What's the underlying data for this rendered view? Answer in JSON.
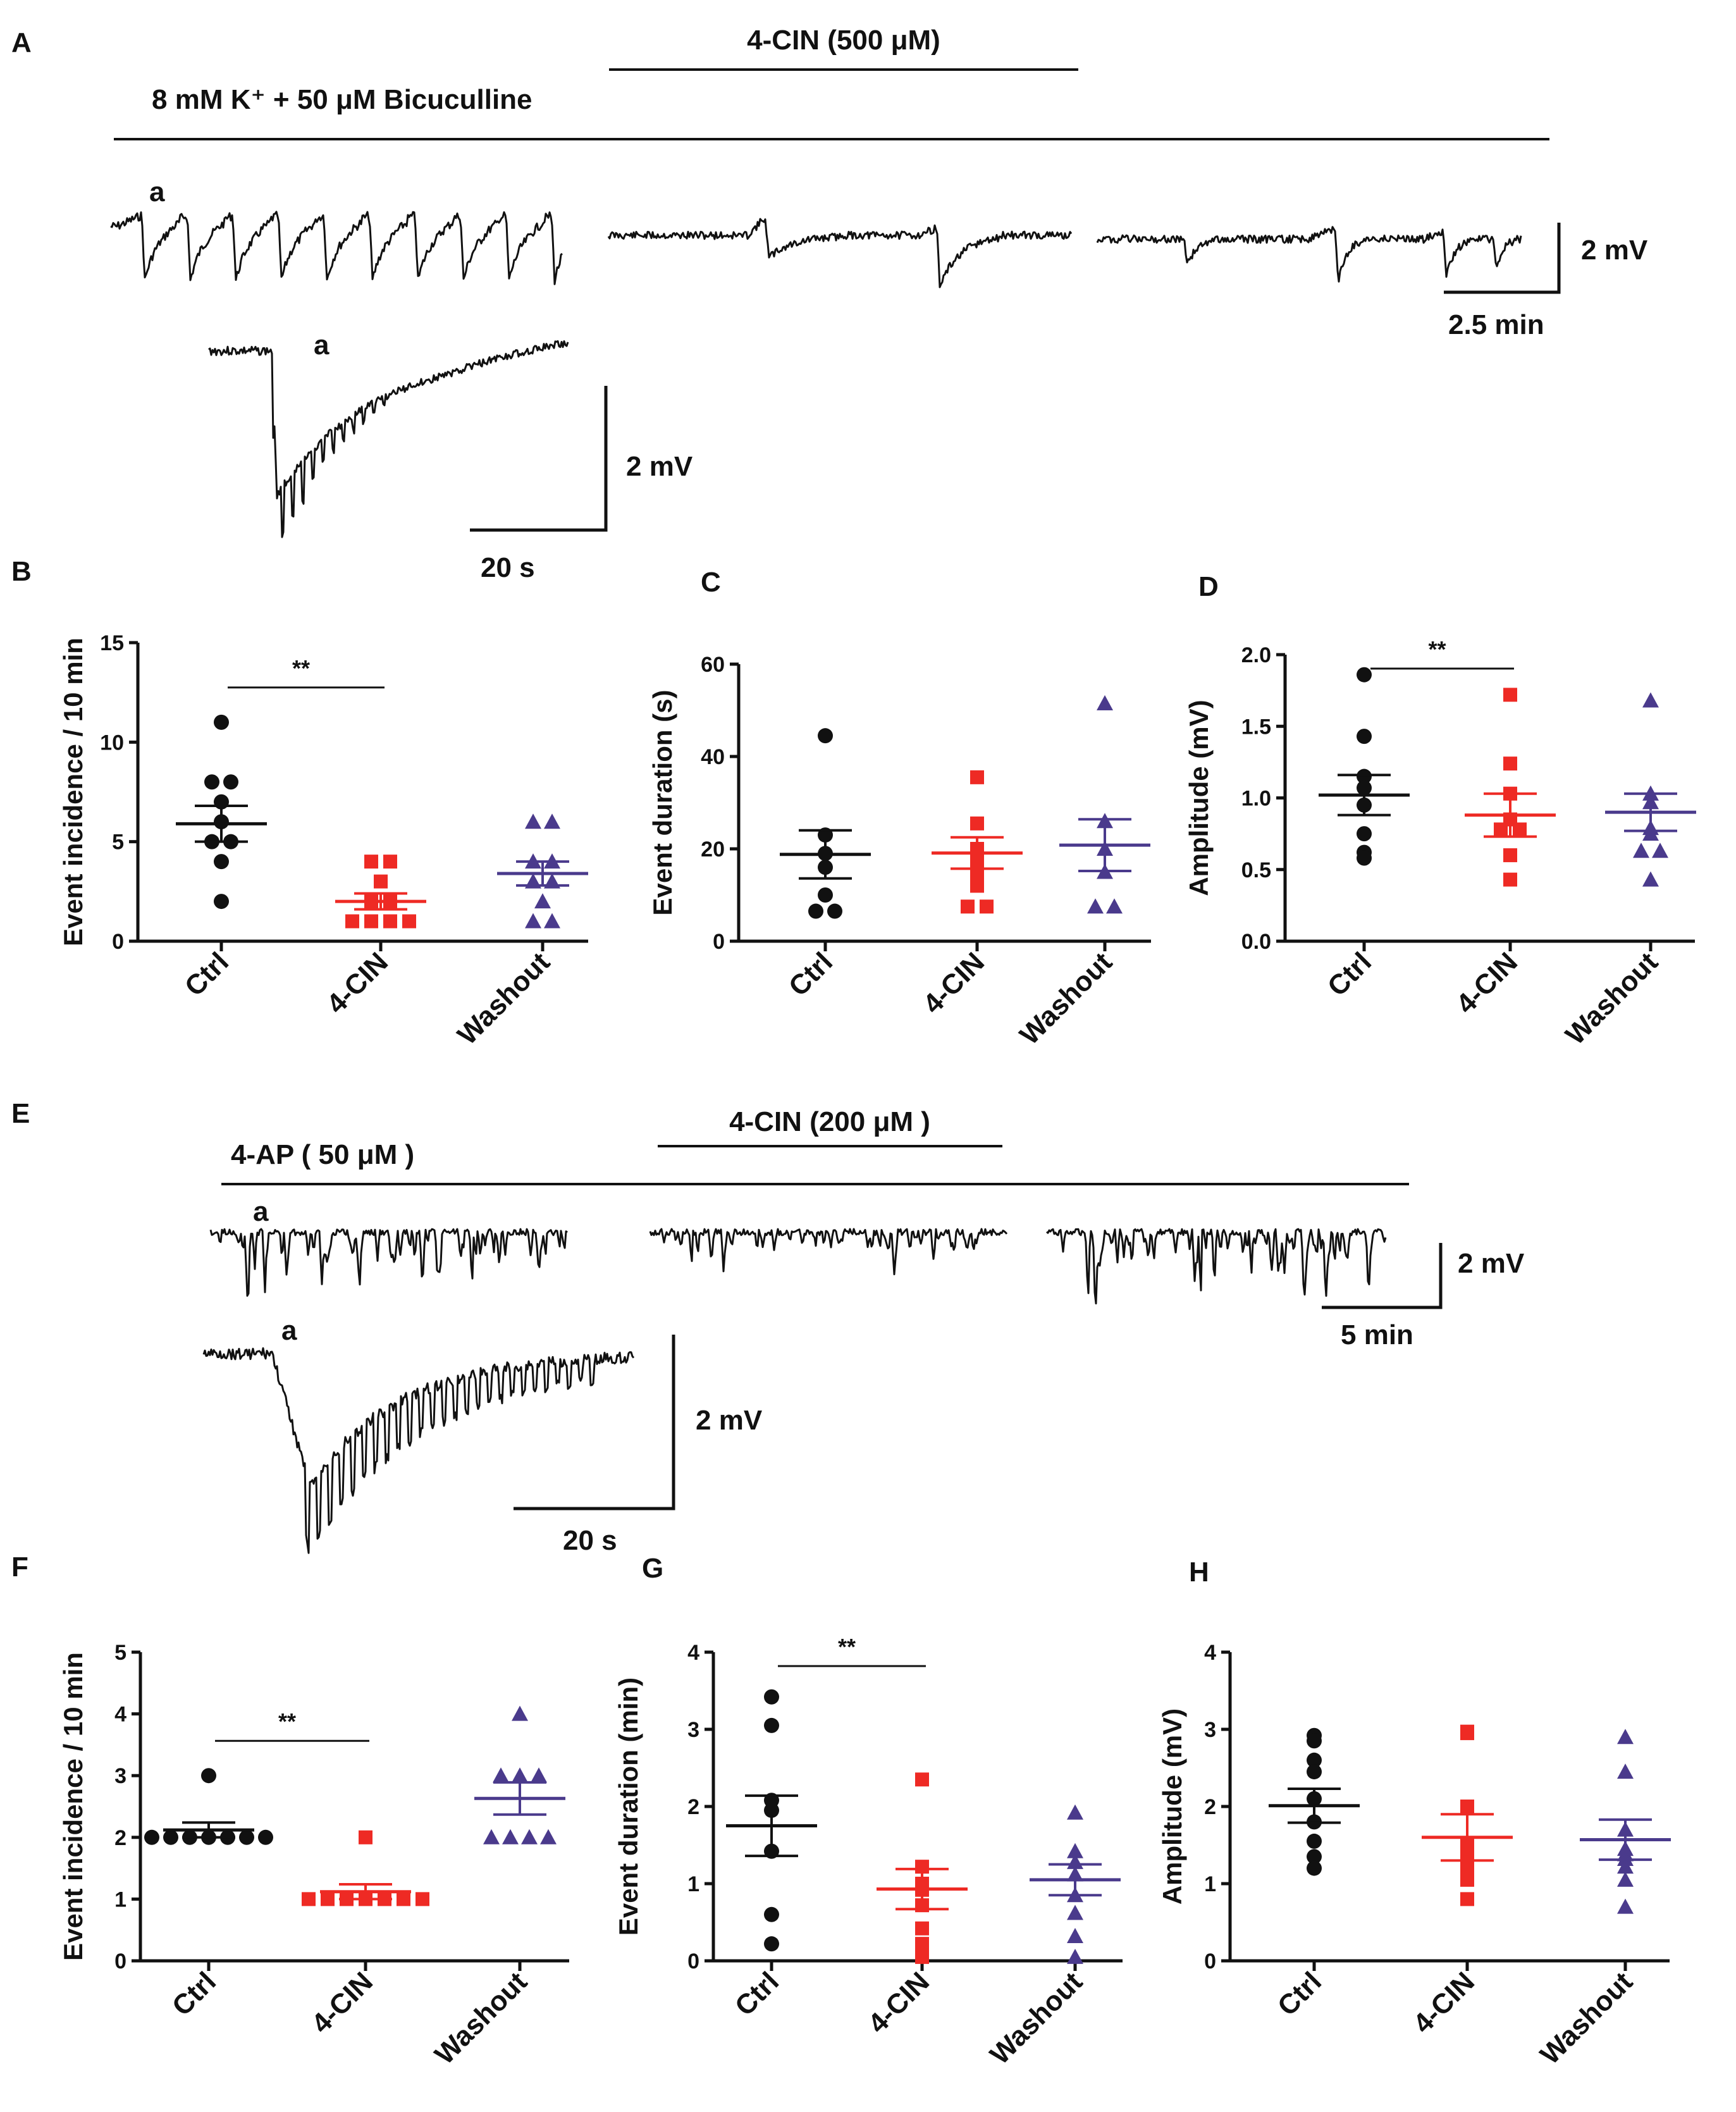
{
  "colors": {
    "ctrl": "#111111",
    "cin": "#ee2a24",
    "washout": "#4a3a8c"
  },
  "traces": {
    "A": {
      "label": "A",
      "baseline_label": "8 mM K⁺ + 50 μM  Bicuculline",
      "drug_label": "4-CIN (500 μM)",
      "event_marker": "a",
      "scale_v": "2 mV",
      "scale_t": "2.5 min",
      "inset_marker": "a",
      "inset_scale_v": "2 mV",
      "inset_scale_t": "20 s"
    },
    "E": {
      "label": "E",
      "baseline_label": "4-AP ( 50 μM )",
      "drug_label": "4-CIN (200 μM )",
      "event_marker": "a",
      "scale_v": "2 mV",
      "scale_t": "5 min",
      "inset_marker": "a",
      "inset_scale_v": "2 mV",
      "inset_scale_t": "20 s"
    }
  },
  "chart_data": [
    {
      "panel": "B",
      "type": "scatter",
      "ylabel": "Event incidence / 10 min",
      "ylim": [
        0,
        15
      ],
      "yticks": [
        "0",
        "5",
        "10",
        "15"
      ],
      "categories": [
        "Ctrl",
        "4-CIN",
        "Washout"
      ],
      "series": [
        {
          "name": "Ctrl",
          "marker": "circle",
          "values": [
            11,
            8,
            8,
            7,
            6,
            5,
            5,
            4,
            2
          ],
          "mean": 5.9,
          "sem": 0.9
        },
        {
          "name": "4-CIN",
          "marker": "square",
          "values": [
            4,
            4,
            3,
            2,
            2,
            1,
            1,
            1,
            1
          ],
          "mean": 2.0,
          "sem": 0.4
        },
        {
          "name": "Washout",
          "marker": "triangle",
          "values": [
            6,
            6,
            4,
            4,
            3,
            3,
            2,
            1,
            1
          ],
          "mean": 3.4,
          "sem": 0.6
        }
      ],
      "significance": [
        {
          "from": 0,
          "to": 1,
          "label": "**"
        }
      ]
    },
    {
      "panel": "C",
      "type": "scatter",
      "ylabel": "Event duration (s)",
      "ylim": [
        0,
        60
      ],
      "yticks": [
        "0",
        "20",
        "40",
        "60"
      ],
      "categories": [
        "Ctrl",
        "4-CIN",
        "Washout"
      ],
      "series": [
        {
          "name": "Ctrl",
          "marker": "circle",
          "values": [
            44.5,
            23,
            19,
            16,
            10,
            6.5,
            6.5
          ],
          "mean": 18.8,
          "sem": 5.2
        },
        {
          "name": "4-CIN",
          "marker": "square",
          "values": [
            35.5,
            25.5,
            20,
            17,
            14,
            12,
            7.5,
            7.5
          ],
          "mean": 19.1,
          "sem": 3.4
        },
        {
          "name": "Washout",
          "marker": "triangle",
          "values": [
            51.5,
            26,
            20,
            15,
            7.5,
            7.5
          ],
          "mean": 20.8,
          "sem": 5.6
        }
      ],
      "significance": []
    },
    {
      "panel": "D",
      "type": "scatter",
      "ylabel": "Amplitude (mV)",
      "ylim": [
        0,
        2
      ],
      "yticks": [
        "0.0",
        "0.5",
        "1.0",
        "1.5",
        "2.0"
      ],
      "categories": [
        "Ctrl",
        "4-CIN",
        "Washout"
      ],
      "series": [
        {
          "name": "Ctrl",
          "marker": "circle",
          "values": [
            1.86,
            1.43,
            1.15,
            1.07,
            0.95,
            0.75,
            0.62,
            0.58
          ],
          "mean": 1.02,
          "sem": 0.14
        },
        {
          "name": "4-CIN",
          "marker": "square",
          "values": [
            1.72,
            1.24,
            1.03,
            0.85,
            0.78,
            0.78,
            0.6,
            0.43
          ],
          "mean": 0.88,
          "sem": 0.15
        },
        {
          "name": "Washout",
          "marker": "triangle",
          "values": [
            1.68,
            1.03,
            0.97,
            0.79,
            0.75,
            0.63,
            0.63,
            0.43
          ],
          "mean": 0.9,
          "sem": 0.13
        }
      ],
      "significance": [
        {
          "from": 0,
          "to": 1,
          "label": "**"
        }
      ]
    },
    {
      "panel": "F",
      "type": "scatter",
      "ylabel": "Event incidence / 10 min",
      "ylim": [
        0,
        5
      ],
      "yticks": [
        "0",
        "1",
        "2",
        "3",
        "4",
        "5"
      ],
      "categories": [
        "Ctrl",
        "4-CIN",
        "Washout"
      ],
      "series": [
        {
          "name": "Ctrl",
          "marker": "circle",
          "values": [
            3,
            2,
            2,
            2,
            2,
            2,
            2,
            2
          ],
          "mean": 2.12,
          "sem": 0.12
        },
        {
          "name": "4-CIN",
          "marker": "square",
          "values": [
            2,
            1,
            1,
            1,
            1,
            1,
            1,
            1
          ],
          "mean": 1.12,
          "sem": 0.12
        },
        {
          "name": "Washout",
          "marker": "triangle",
          "values": [
            4,
            3,
            3,
            3,
            2,
            2,
            2,
            2
          ],
          "mean": 2.63,
          "sem": 0.26
        }
      ],
      "significance": [
        {
          "from": 0,
          "to": 1,
          "label": "**"
        }
      ]
    },
    {
      "panel": "G",
      "type": "scatter",
      "ylabel": "Event duration (min)",
      "ylim": [
        0,
        4
      ],
      "yticks": [
        "0",
        "1",
        "2",
        "3",
        "4"
      ],
      "categories": [
        "Ctrl",
        "4-CIN",
        "Washout"
      ],
      "series": [
        {
          "name": "Ctrl",
          "marker": "circle",
          "values": [
            3.42,
            3.05,
            2.08,
            1.95,
            1.42,
            0.6,
            0.22
          ],
          "mean": 1.75,
          "sem": 0.39
        },
        {
          "name": "4-CIN",
          "marker": "square",
          "values": [
            2.35,
            1.22,
            1.0,
            0.92,
            0.72,
            0.42,
            0.22,
            0.05
          ],
          "mean": 0.93,
          "sem": 0.26
        },
        {
          "name": "Washout",
          "marker": "triangle",
          "values": [
            1.92,
            1.42,
            1.28,
            1.12,
            0.85,
            0.62,
            0.32,
            0.05
          ],
          "mean": 1.05,
          "sem": 0.2
        }
      ],
      "significance": [
        {
          "from": 0,
          "to": 1,
          "label": "**"
        }
      ]
    },
    {
      "panel": "H",
      "type": "scatter",
      "ylabel": "Amplitude (mV)",
      "ylim": [
        0,
        4
      ],
      "yticks": [
        "0",
        "1",
        "2",
        "3",
        "4"
      ],
      "categories": [
        "Ctrl",
        "4-CIN",
        "Washout"
      ],
      "series": [
        {
          "name": "Ctrl",
          "marker": "circle",
          "values": [
            2.92,
            2.85,
            2.6,
            2.45,
            2.1,
            1.8,
            1.55,
            1.35,
            1.2
          ],
          "mean": 2.01,
          "sem": 0.22
        },
        {
          "name": "4-CIN",
          "marker": "square",
          "values": [
            2.97,
            2.95,
            2.0,
            1.5,
            1.35,
            1.25,
            1.18,
            1.05,
            0.8
          ],
          "mean": 1.6,
          "sem": 0.3
        },
        {
          "name": "Washout",
          "marker": "triangle",
          "values": [
            2.9,
            2.45,
            1.7,
            1.45,
            1.38,
            1.32,
            1.22,
            1.05,
            0.7
          ],
          "mean": 1.57,
          "sem": 0.26
        }
      ],
      "significance": []
    }
  ]
}
